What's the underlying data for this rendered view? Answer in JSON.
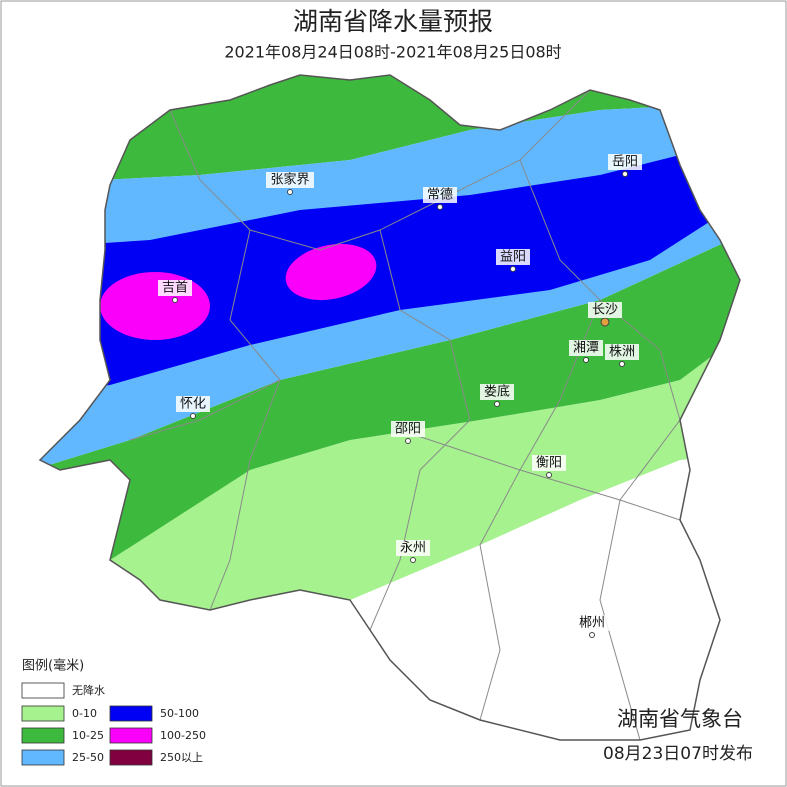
{
  "header": {
    "title": "湖南省降水量预报",
    "subtitle": "2021年08月24日08时-2021年08月25日08时"
  },
  "cities": [
    {
      "label": "岳阳"
    },
    {
      "label": "张家界"
    },
    {
      "label": "常德"
    },
    {
      "label": "益阳"
    },
    {
      "label": "吉首"
    },
    {
      "label": "长沙"
    },
    {
      "label": "湘潭"
    },
    {
      "label": "株洲"
    },
    {
      "label": "怀化"
    },
    {
      "label": "娄底"
    },
    {
      "label": "邵阳"
    },
    {
      "label": "衡阳"
    },
    {
      "label": "永州"
    },
    {
      "label": "郴州"
    }
  ],
  "legend": {
    "title": "图例(毫米)",
    "items": [
      {
        "label": "无降水",
        "color": "#ffffff"
      },
      {
        "label": "0-10",
        "color": "#a6f28f"
      },
      {
        "label": "10-25",
        "color": "#3dba3d"
      },
      {
        "label": "25-50",
        "color": "#61b8ff"
      },
      {
        "label": "50-100",
        "color": "#0000f5"
      },
      {
        "label": "100-250",
        "color": "#fa00fa"
      },
      {
        "label": "250以上",
        "color": "#800040"
      }
    ]
  },
  "footer": {
    "issuer": "湖南省气象台",
    "issued": "08月23日07时发布"
  }
}
